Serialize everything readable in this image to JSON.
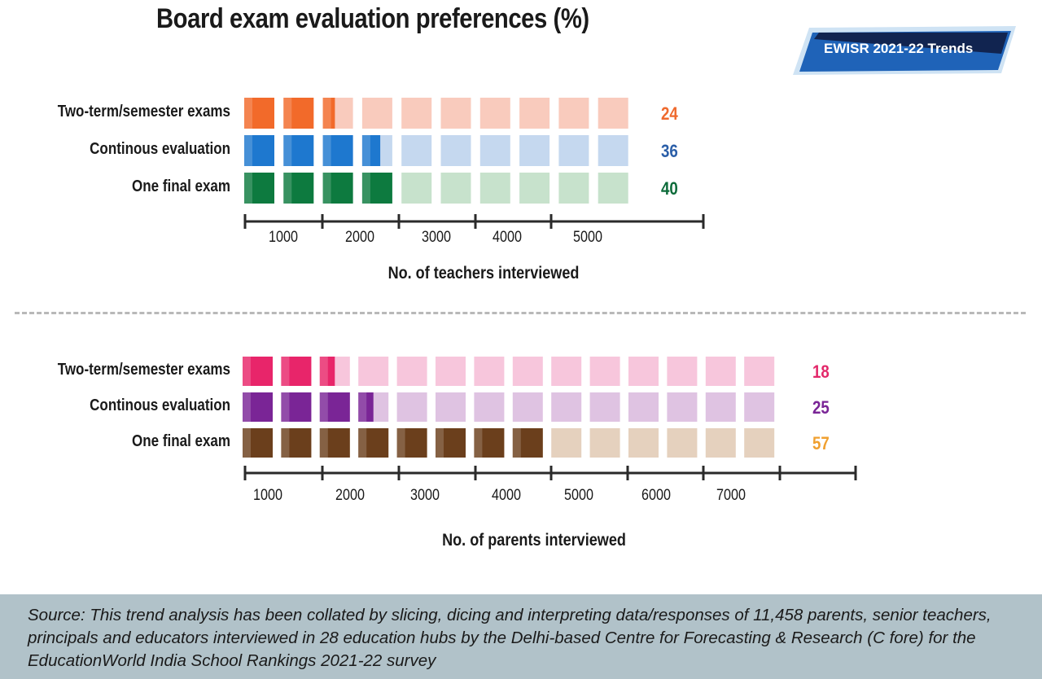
{
  "title": "Board exam evaluation preferences (%)",
  "badge": "EWISR 2021-22 Trends",
  "colors": {
    "orange": "#f26a2a",
    "orange_light": "#f9cbbd",
    "blue": "#1e78cf",
    "blue_light": "#c5d8ef",
    "green": "#0d7a3f",
    "green_light": "#c7e2cc",
    "pink": "#e8256a",
    "pink_light": "#f7c6dc",
    "purple": "#7a2596",
    "purple_light": "#dfc3e2",
    "brown": "#6b3f1c",
    "brown_light": "#e5d1be",
    "value_orange": "#ef6a2e",
    "value_blue": "#2a5ea8",
    "value_green": "#0d6b3a",
    "value_pink": "#e3286a",
    "value_purple": "#7a2596",
    "value_gold": "#f0a030"
  },
  "chart_data": [
    {
      "type": "bar",
      "categories": [
        "Two-term/semester exams",
        "Continous evaluation",
        "One final exam"
      ],
      "values": [
        24,
        36,
        40
      ],
      "xlabel": "No. of teachers interviewed",
      "ticks": [
        "1000",
        "2000",
        "3000",
        "4000",
        "5000"
      ],
      "total_cells": 10,
      "filled_cells": [
        2.4,
        3.6,
        4.0
      ],
      "series_colors": [
        "orange",
        "blue",
        "green"
      ],
      "value_colors": [
        "value_orange",
        "value_blue",
        "value_green"
      ]
    },
    {
      "type": "bar",
      "categories": [
        "Two-term/semester exams",
        "Continous evaluation",
        "One final exam"
      ],
      "values": [
        18,
        25,
        57
      ],
      "xlabel": "No. of parents interviewed",
      "ticks": [
        "1000",
        "2000",
        "3000",
        "4000",
        "5000",
        "6000",
        "7000"
      ],
      "total_cells": 14,
      "filled_cells": [
        2.5,
        3.5,
        8.0
      ],
      "series_colors": [
        "pink",
        "purple",
        "brown"
      ],
      "value_colors": [
        "value_pink",
        "value_purple",
        "value_gold"
      ]
    }
  ],
  "source": "Source: This trend analysis has been collated by slicing, dicing and interpreting data/responses of 11,458 parents, senior teachers, principals and educators interviewed in 28 education hubs by the Delhi-based Centre for Forecasting & Research (C fore) for the EducationWorld India School Rankings 2021-22 survey"
}
